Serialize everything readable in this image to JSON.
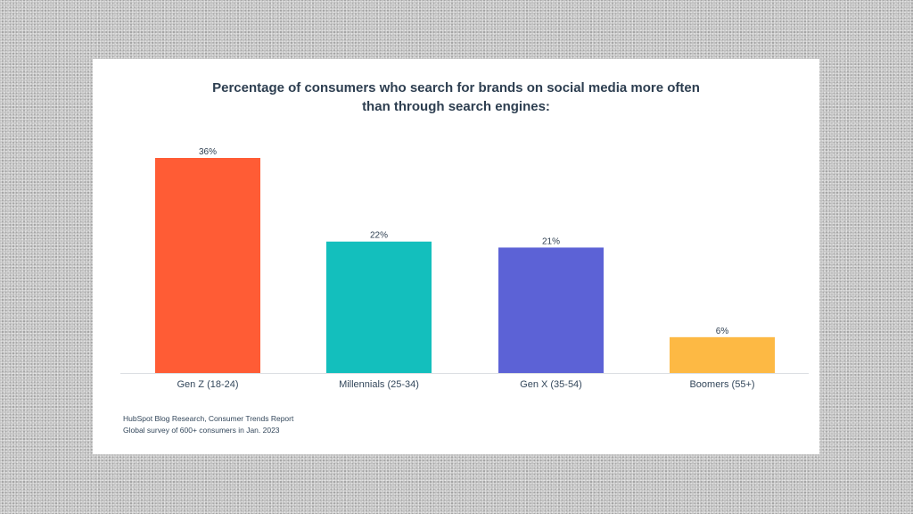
{
  "chart_data": {
    "type": "bar",
    "title_lines": [
      "Percentage of consumers who search for brands on social media more often",
      "than through search engines:"
    ],
    "categories": [
      "Gen Z (18-24)",
      "Millennials (25-34)",
      "Gen X (35-54)",
      "Boomers (55+)"
    ],
    "values": [
      36,
      22,
      21,
      6
    ],
    "data_labels": [
      "36%",
      "22%",
      "21%",
      "6%"
    ],
    "colors": [
      "#ff5c35",
      "#13bfbd",
      "#5c62d6",
      "#fdb944"
    ],
    "ylim": [
      0,
      36
    ],
    "grid": false,
    "legend": "none"
  },
  "source": {
    "line1": "HubSpot Blog Research, Consumer Trends Report",
    "line2": "Global survey of 600+ consumers in Jan. 2023"
  }
}
